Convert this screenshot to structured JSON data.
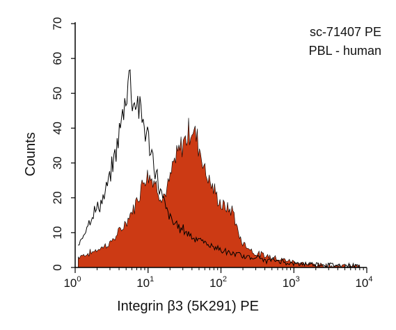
{
  "chart_data": {
    "type": "area",
    "xlabel": "Integrin β3 (5K291) PE",
    "ylabel": "Counts",
    "xscale": "log",
    "xlim": [
      1,
      10000
    ],
    "ylim": [
      0,
      70
    ],
    "x_tick_labels": [
      {
        "base": "10",
        "exp": "0"
      },
      {
        "base": "10",
        "exp": "1"
      },
      {
        "base": "10",
        "exp": "2"
      },
      {
        "base": "10",
        "exp": "3"
      },
      {
        "base": "10",
        "exp": "4"
      }
    ],
    "x_tick_values": [
      1,
      10,
      100,
      1000,
      10000
    ],
    "y_ticks": [
      0,
      10,
      20,
      30,
      40,
      50,
      60,
      70
    ],
    "y_tick_labels": [
      "0",
      "10",
      "20",
      "30",
      "40",
      "50",
      "60",
      "70"
    ],
    "annotations": [
      "sc-71407 PE",
      "PBL - human"
    ],
    "series": [
      {
        "style": "outline",
        "color": "#000000",
        "x": [
          1.1,
          1.5,
          2,
          2.5,
          3,
          3.5,
          4,
          4.5,
          5,
          5.5,
          6,
          6.5,
          7,
          8,
          9,
          10,
          11,
          12,
          13,
          14,
          15,
          17,
          19,
          22,
          25,
          30,
          35,
          40,
          50,
          60,
          80,
          100,
          130,
          160,
          200,
          300,
          400,
          600,
          1000,
          2000,
          5000,
          8000
        ],
        "y": [
          6,
          13,
          17,
          20,
          26,
          32,
          38,
          44,
          50,
          56,
          50,
          47,
          48,
          44,
          40,
          37,
          33,
          30,
          27,
          24,
          21,
          18,
          15,
          13,
          12,
          11,
          10,
          9,
          8,
          7,
          6,
          5,
          4,
          4,
          3,
          3,
          2,
          2,
          1,
          1,
          0.5,
          0.5
        ]
      },
      {
        "style": "filled",
        "color": "#cc3a14",
        "x": [
          1.1,
          1.5,
          2,
          3,
          4,
          5,
          6,
          7,
          8,
          9,
          10,
          12,
          14,
          16,
          18,
          20,
          22,
          25,
          28,
          30,
          33,
          36,
          40,
          45,
          50,
          55,
          60,
          70,
          80,
          90,
          100,
          120,
          150,
          170,
          200,
          300,
          500,
          800,
          1500,
          3000,
          8000
        ],
        "y": [
          3,
          4,
          5,
          7,
          10,
          13,
          16,
          19,
          23,
          26,
          27,
          25,
          22,
          20,
          22,
          25,
          29,
          32,
          34,
          36,
          37,
          39,
          40,
          38,
          35,
          32,
          28,
          25,
          22,
          20,
          18,
          17,
          16,
          10,
          7,
          4,
          3,
          2,
          1,
          0.5,
          0.3
        ]
      }
    ]
  }
}
